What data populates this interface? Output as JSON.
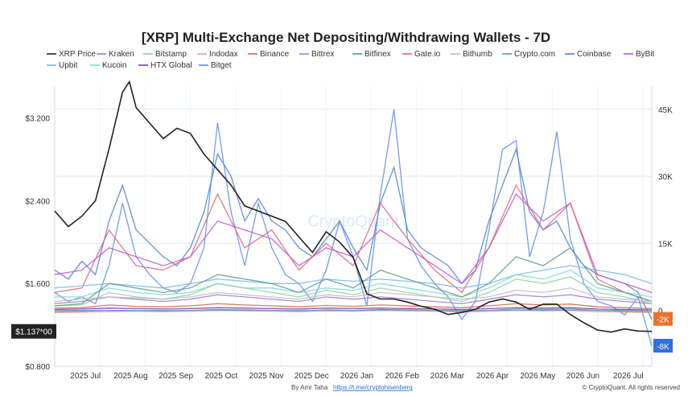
{
  "chart_data": {
    "type": "line",
    "title": "[XRP] Multi-Exchange Net Depositing/Withdrawing Wallets - 7D",
    "x_ticks": [
      "2025 Jul",
      "2025 Aug",
      "2025 Sep",
      "2025 Oct",
      "2025 Nov",
      "2025 Dec",
      "2026 Jan",
      "2026 Feb",
      "2026 Mar",
      "2026 Apr",
      "2026 May",
      "2026 Jun",
      "2026 Jul"
    ],
    "x_range": [
      0,
      13.2
    ],
    "y_left": {
      "ticks": [
        "$0.800",
        "$1.600",
        "$2.400",
        "$3.200"
      ],
      "tick_values": [
        0.8,
        1.6,
        2.4,
        3.2
      ],
      "range": [
        0.8,
        3.5
      ]
    },
    "y_right": {
      "ticks": [
        "0",
        "15K",
        "30K",
        "45K"
      ],
      "tick_values": [
        0,
        15000,
        30000,
        45000
      ],
      "range": [
        -12500,
        50000
      ]
    },
    "current_labels": {
      "price": "$1.137*00",
      "a": "-2K",
      "b": "-8K"
    },
    "current_colors": {
      "price": "#222222",
      "a": "#e8732c",
      "b": "#2f6fe0"
    },
    "legend": [
      {
        "name": "XRP Price",
        "color": "#222222"
      },
      {
        "name": "Kraken",
        "color": "#9a7bd8"
      },
      {
        "name": "Bitstamp",
        "color": "#8fd19e"
      },
      {
        "name": "Indodax",
        "color": "#e8a08a"
      },
      {
        "name": "Binance",
        "color": "#d65f5f"
      },
      {
        "name": "Bittrex",
        "color": "#7b8fe0"
      },
      {
        "name": "Bitfinex",
        "color": "#3aa58f"
      },
      {
        "name": "Gate.io",
        "color": "#e0607a"
      },
      {
        "name": "Bithumb",
        "color": "#bdbdbd"
      },
      {
        "name": "Crypto.com",
        "color": "#5b9c8a"
      },
      {
        "name": "Coinbase",
        "color": "#4a7fd0"
      },
      {
        "name": "ByBit",
        "color": "#c054d6"
      },
      {
        "name": "Upbit",
        "color": "#74b8e8"
      },
      {
        "name": "Kucoin",
        "color": "#7fd6d0"
      },
      {
        "name": "HTX Global",
        "color": "#7a3c9a"
      },
      {
        "name": "Bitget",
        "color": "#5a8cf0"
      }
    ],
    "series": [
      {
        "name": "XRP Price",
        "axis": "left",
        "color": "#222222",
        "x": [
          0,
          0.3,
          0.6,
          0.9,
          1.2,
          1.5,
          1.65,
          1.8,
          2.1,
          2.4,
          2.7,
          3.0,
          3.3,
          3.6,
          3.9,
          4.2,
          4.5,
          4.8,
          5.1,
          5.4,
          5.7,
          6.0,
          6.3,
          6.6,
          6.9,
          7.2,
          7.5,
          7.8,
          8.1,
          8.4,
          8.7,
          9.0,
          9.3,
          9.6,
          9.9,
          10.2,
          10.5,
          10.8,
          11.1,
          11.4,
          11.7,
          12.0,
          12.3,
          12.6,
          12.9,
          13.2
        ],
        "values": [
          2.3,
          2.15,
          2.25,
          2.4,
          2.9,
          3.45,
          3.55,
          3.3,
          3.15,
          3.0,
          3.1,
          3.05,
          2.85,
          2.7,
          2.55,
          2.35,
          2.3,
          2.25,
          2.2,
          2.05,
          1.9,
          2.1,
          2.0,
          1.85,
          1.5,
          1.45,
          1.45,
          1.42,
          1.38,
          1.35,
          1.3,
          1.32,
          1.35,
          1.42,
          1.45,
          1.42,
          1.35,
          1.4,
          1.4,
          1.3,
          1.22,
          1.15,
          1.13,
          1.16,
          1.14,
          1.137
        ]
      },
      {
        "name": "Coinbase",
        "axis": "right",
        "color": "#4a7fd0",
        "x": [
          0,
          0.3,
          0.6,
          0.9,
          1.2,
          1.5,
          1.8,
          2.1,
          2.4,
          2.7,
          3.0,
          3.3,
          3.6,
          3.9,
          4.2,
          4.5,
          4.8,
          5.1,
          5.4,
          5.7,
          6.0,
          6.3,
          6.6,
          6.9,
          7.2,
          7.5,
          7.8,
          8.1,
          8.4,
          8.7,
          9.0,
          9.3,
          9.6,
          9.9,
          10.2,
          10.5,
          10.8,
          11.1,
          11.4,
          11.7,
          12.0,
          12.3,
          12.6,
          12.9,
          13.2
        ],
        "values": [
          9000,
          7000,
          11000,
          8000,
          20000,
          28000,
          18000,
          15000,
          12000,
          10000,
          14000,
          22000,
          35000,
          30000,
          20000,
          25000,
          20000,
          18000,
          14000,
          12000,
          16000,
          20000,
          14000,
          9000,
          24000,
          32000,
          18000,
          14000,
          12000,
          10000,
          6000,
          9000,
          20000,
          28000,
          36000,
          22000,
          18000,
          20000,
          14000,
          10000,
          8000,
          7000,
          6000,
          4000,
          -2000
        ]
      },
      {
        "name": "Bitget",
        "axis": "right",
        "color": "#5a8cf0",
        "x": [
          0,
          0.3,
          0.6,
          0.9,
          1.2,
          1.5,
          1.8,
          2.1,
          2.4,
          2.7,
          3.0,
          3.3,
          3.6,
          3.9,
          4.2,
          4.5,
          4.8,
          5.1,
          5.4,
          5.7,
          6.0,
          6.3,
          6.6,
          6.9,
          7.2,
          7.5,
          7.8,
          8.1,
          8.4,
          8.7,
          9.0,
          9.3,
          9.6,
          9.9,
          10.2,
          10.5,
          10.8,
          11.1,
          11.4,
          11.7,
          12.0,
          12.3,
          12.6,
          12.9,
          13.2
        ],
        "values": [
          4000,
          2000,
          3000,
          1500,
          10000,
          24000,
          12000,
          8000,
          5000,
          4000,
          6000,
          14000,
          42000,
          22000,
          10000,
          24000,
          14000,
          8000,
          6000,
          2000,
          9000,
          20000,
          12000,
          1000,
          26000,
          45000,
          16000,
          10000,
          6000,
          3000,
          -2000,
          2000,
          18000,
          36000,
          38000,
          12000,
          22000,
          40000,
          16000,
          6000,
          2000,
          1000,
          -1000,
          3000,
          -8000
        ]
      },
      {
        "name": "ByBit",
        "axis": "right",
        "color": "#c054d6",
        "x": [
          0,
          0.6,
          1.2,
          1.8,
          2.4,
          3.0,
          3.6,
          4.2,
          4.8,
          5.4,
          6.0,
          6.6,
          7.2,
          7.8,
          8.4,
          9.0,
          9.6,
          10.2,
          10.8,
          11.4,
          12.0,
          12.6,
          13.2
        ],
        "values": [
          8000,
          9000,
          14000,
          12000,
          10000,
          12000,
          20000,
          18000,
          16000,
          10000,
          14000,
          12000,
          18000,
          14000,
          10000,
          6000,
          14000,
          26000,
          20000,
          24000,
          8000,
          6000,
          4000
        ]
      },
      {
        "name": "Gate.io",
        "axis": "right",
        "color": "#e0607a",
        "x": [
          0,
          0.6,
          1.2,
          1.8,
          2.4,
          3.0,
          3.6,
          4.2,
          4.8,
          5.4,
          6.0,
          6.6,
          7.2,
          7.8,
          8.4,
          9.0,
          9.6,
          10.2,
          10.8,
          11.4,
          12.0,
          12.6,
          13.2
        ],
        "values": [
          4000,
          5000,
          18000,
          10000,
          9000,
          12000,
          26000,
          14000,
          18000,
          9000,
          15000,
          10000,
          24000,
          16000,
          9000,
          4000,
          14000,
          28000,
          18000,
          24000,
          7000,
          4000,
          2000
        ]
      },
      {
        "name": "Upbit",
        "axis": "right",
        "color": "#74b8e8",
        "x": [
          0,
          0.6,
          1.2,
          1.8,
          2.4,
          3.0,
          3.6,
          4.2,
          4.8,
          5.4,
          6.0,
          6.6,
          7.2,
          7.8,
          8.4,
          9.0,
          9.6,
          10.2,
          10.8,
          11.4,
          12.0,
          12.6,
          13.2
        ],
        "values": [
          5000,
          5500,
          6000,
          5500,
          5000,
          6000,
          7000,
          6500,
          6000,
          6000,
          7000,
          6500,
          7000,
          6500,
          6000,
          5000,
          6000,
          8000,
          9000,
          10000,
          9000,
          8000,
          6000
        ]
      },
      {
        "name": "Kucoin",
        "axis": "right",
        "color": "#7fd6d0",
        "x": [
          0,
          0.6,
          1.2,
          1.8,
          2.4,
          3.0,
          3.6,
          4.2,
          4.8,
          5.4,
          6.0,
          6.6,
          7.2,
          7.8,
          8.4,
          9.0,
          9.6,
          10.2,
          10.8,
          11.4,
          12.0,
          12.6,
          13.2
        ],
        "values": [
          3000,
          3000,
          5000,
          4000,
          3500,
          4000,
          6000,
          5000,
          5000,
          4000,
          5000,
          4500,
          6000,
          5000,
          4000,
          3000,
          5000,
          8000,
          7000,
          9000,
          5000,
          4000,
          3000
        ]
      },
      {
        "name": "Kraken",
        "axis": "right",
        "color": "#9a7bd8",
        "x": [
          0,
          0.6,
          1.2,
          1.8,
          2.4,
          3.0,
          3.6,
          4.2,
          4.8,
          5.4,
          6.0,
          6.6,
          7.2,
          7.8,
          8.4,
          9.0,
          9.6,
          10.2,
          10.8,
          11.4,
          12.0,
          12.6,
          13.2
        ],
        "values": [
          1500,
          2000,
          3000,
          2500,
          2000,
          2500,
          3500,
          3000,
          2500,
          2000,
          3000,
          2500,
          3000,
          2500,
          2000,
          1500,
          2500,
          3500,
          3000,
          3500,
          2500,
          2000,
          1500
        ]
      },
      {
        "name": "Bitstamp",
        "axis": "right",
        "color": "#8fd19e",
        "x": [
          0,
          0.6,
          1.2,
          1.8,
          2.4,
          3.0,
          3.6,
          4.2,
          4.8,
          5.4,
          6.0,
          6.6,
          7.2,
          7.8,
          8.4,
          9.0,
          9.6,
          10.2,
          10.8,
          11.4,
          12.0,
          12.6,
          13.2
        ],
        "values": [
          1000,
          1200,
          4000,
          3000,
          2500,
          3500,
          6000,
          5000,
          4000,
          3000,
          4500,
          3500,
          5000,
          4000,
          3000,
          2000,
          4000,
          7000,
          6000,
          7500,
          4000,
          3000,
          1500
        ]
      },
      {
        "name": "Binance",
        "axis": "right",
        "color": "#d65f5f",
        "x": [
          0,
          0.6,
          1.2,
          1.8,
          2.4,
          3.0,
          3.6,
          4.2,
          4.8,
          5.4,
          6.0,
          6.6,
          7.2,
          7.8,
          8.4,
          9.0,
          9.6,
          10.2,
          10.8,
          11.4,
          12.0,
          12.6,
          13.2
        ],
        "values": [
          500,
          600,
          1200,
          900,
          800,
          1000,
          1500,
          1200,
          1000,
          800,
          1100,
          900,
          1200,
          1000,
          800,
          600,
          1000,
          1500,
          1200,
          1400,
          800,
          600,
          400
        ]
      },
      {
        "name": "HTX Global",
        "axis": "right",
        "color": "#7a3c9a",
        "x": [
          0,
          0.6,
          1.2,
          1.8,
          2.4,
          3.0,
          3.6,
          4.2,
          4.8,
          5.4,
          6.0,
          6.6,
          7.2,
          7.8,
          8.4,
          9.0,
          9.6,
          10.2,
          10.8,
          11.4,
          12.0,
          12.6,
          13.2
        ],
        "values": [
          200,
          300,
          500,
          400,
          300,
          400,
          600,
          500,
          400,
          300,
          500,
          400,
          500,
          400,
          300,
          200,
          400,
          600,
          500,
          600,
          300,
          200,
          100
        ]
      },
      {
        "name": "Bitfinex",
        "axis": "right",
        "color": "#3aa58f",
        "x": [
          0,
          0.6,
          1.2,
          1.8,
          2.4,
          3.0,
          3.6,
          4.2,
          4.8,
          5.4,
          6.0,
          6.6,
          7.2,
          7.8,
          8.4,
          9.0,
          9.6,
          10.2,
          10.8,
          11.4,
          12.0,
          12.6,
          13.2
        ],
        "values": [
          -300,
          -200,
          0,
          -100,
          -200,
          0,
          200,
          100,
          0,
          -100,
          100,
          0,
          200,
          100,
          0,
          -200,
          0,
          300,
          200,
          300,
          0,
          -200,
          -300
        ]
      },
      {
        "name": "Crypto.com",
        "axis": "right",
        "color": "#5b9c8a",
        "x": [
          0,
          0.6,
          1.2,
          1.8,
          2.4,
          3.0,
          3.6,
          4.2,
          4.8,
          5.4,
          6.0,
          6.6,
          7.2,
          7.8,
          8.4,
          9.0,
          9.6,
          10.2,
          10.8,
          11.4,
          12.0,
          12.6,
          13.2
        ],
        "values": [
          1000,
          1500,
          6000,
          5000,
          4000,
          5000,
          8000,
          7000,
          6000,
          4000,
          7000,
          5000,
          9000,
          7000,
          5000,
          3000,
          6000,
          12000,
          10000,
          14000,
          6000,
          4000,
          2000
        ]
      },
      {
        "name": "Indodax",
        "axis": "right",
        "color": "#e8a08a",
        "x": [
          0,
          0.6,
          1.2,
          1.8,
          2.4,
          3.0,
          3.6,
          4.2,
          4.8,
          5.4,
          6.0,
          6.6,
          7.2,
          7.8,
          8.4,
          9.0,
          9.6,
          10.2,
          10.8,
          11.4,
          12.0,
          12.6,
          13.2
        ],
        "values": [
          -500,
          -400,
          -300,
          -200,
          -300,
          -200,
          0,
          -100,
          -200,
          -300,
          -100,
          -200,
          0,
          -100,
          -200,
          -400,
          -200,
          0,
          -100,
          0,
          -300,
          -400,
          -500
        ]
      },
      {
        "name": "Bithumb",
        "axis": "right",
        "color": "#bdbdbd",
        "x": [
          0,
          0.6,
          1.2,
          1.8,
          2.4,
          3.0,
          3.6,
          4.2,
          4.8,
          5.4,
          6.0,
          6.6,
          7.2,
          7.8,
          8.4,
          9.0,
          9.6,
          10.2,
          10.8,
          11.4,
          12.0,
          12.6,
          13.2
        ],
        "values": [
          2000,
          2500,
          3000,
          2800,
          2500,
          3000,
          4000,
          3500,
          3000,
          2500,
          3500,
          3000,
          4000,
          3500,
          3000,
          2500,
          3000,
          4500,
          4000,
          5000,
          3000,
          2500,
          2000
        ]
      },
      {
        "name": "Bittrex",
        "axis": "right",
        "color": "#7b8fe0",
        "x": [
          0,
          0.6,
          1.2,
          1.8,
          2.4,
          3.0,
          3.6,
          4.2,
          4.8,
          5.4,
          6.0,
          6.6,
          7.2,
          7.8,
          8.4,
          9.0,
          9.6,
          10.2,
          10.8,
          11.4,
          12.0,
          12.6,
          13.2
        ],
        "values": [
          0,
          0,
          0,
          0,
          0,
          0,
          0,
          0,
          0,
          0,
          0,
          0,
          0,
          0,
          0,
          0,
          0,
          0,
          0,
          0,
          0,
          0,
          0
        ]
      }
    ],
    "grid": true,
    "legend_placement": "top"
  },
  "footer": {
    "author": "By Amr Taha",
    "link": "https://t.me/cryptohisenberg",
    "brand": "© CryptoQuant. All rights reserved"
  },
  "watermark": "CryptoQuant"
}
